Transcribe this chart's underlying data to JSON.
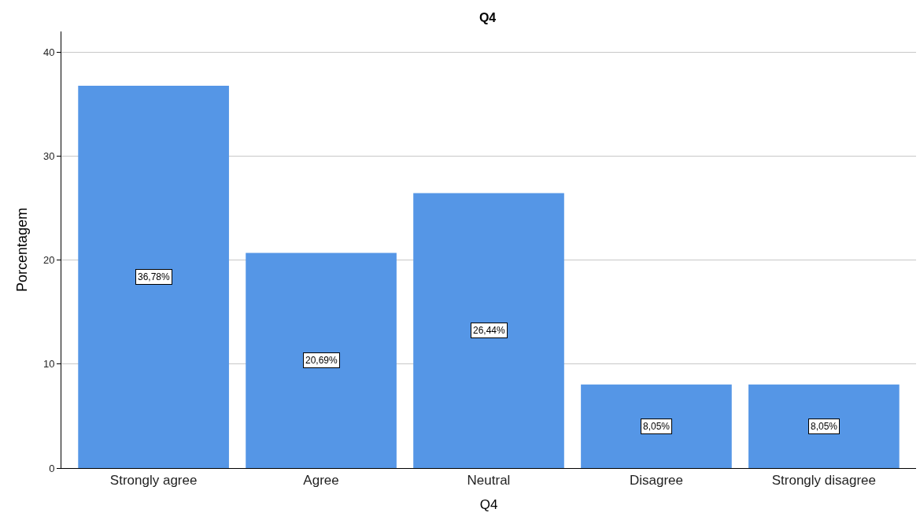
{
  "chart_data": {
    "type": "bar",
    "title": "Q4",
    "xlabel": "Q4",
    "ylabel": "Porcentagem",
    "categories": [
      "Strongly agree",
      "Agree",
      "Neutral",
      "Disagree",
      "Strongly disagree"
    ],
    "values": [
      36.78,
      20.69,
      26.44,
      8.05,
      8.05
    ],
    "value_labels": [
      "36,78%",
      "20,69%",
      "26,44%",
      "8,05%",
      "8,05%"
    ],
    "color": "#5596e6",
    "ylim": [
      0,
      42
    ],
    "yticks": [
      0,
      10,
      20,
      30,
      40
    ],
    "grid": "y"
  }
}
